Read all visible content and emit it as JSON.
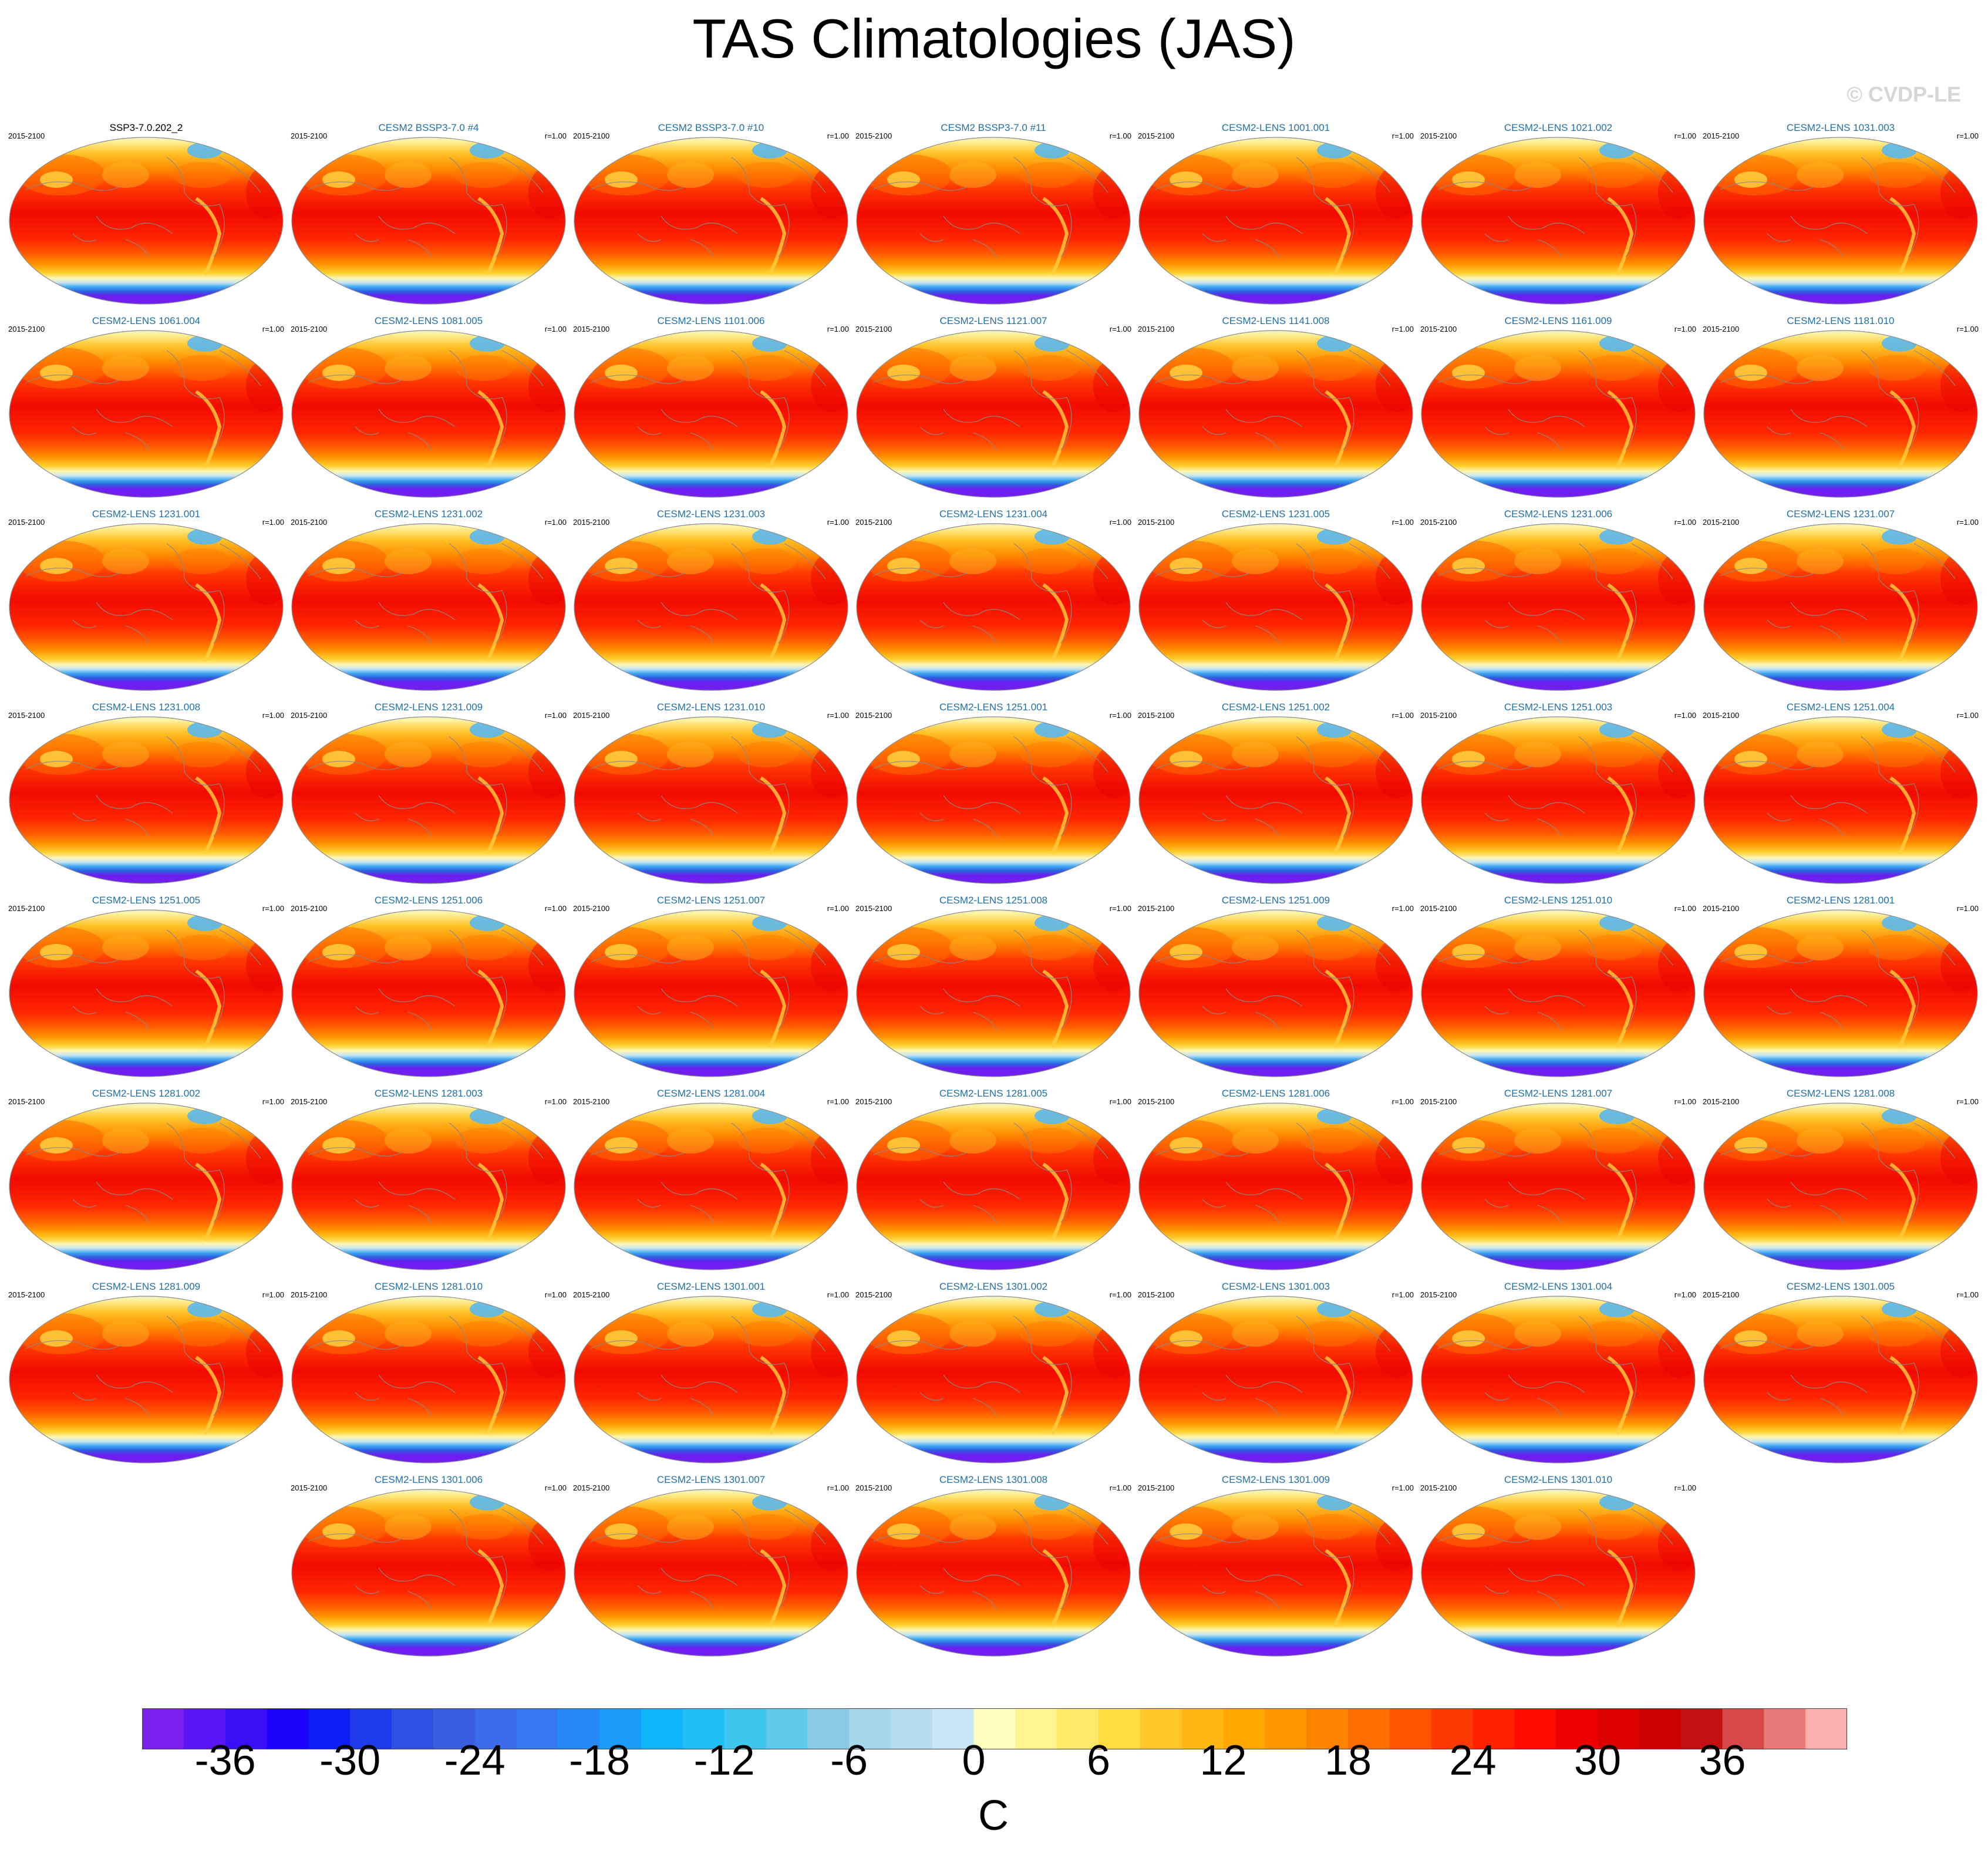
{
  "title": "TAS Climatologies (JAS)",
  "watermark": "© CVDP-LE",
  "panels": [
    {
      "title": "SSP3-7.0.202_2",
      "years": "2015-2100",
      "r": ""
    },
    {
      "title": "CESM2 BSSP3-7.0 #4",
      "years": "2015-2100",
      "r": "r=1.00"
    },
    {
      "title": "CESM2 BSSP3-7.0 #10",
      "years": "2015-2100",
      "r": "r=1.00"
    },
    {
      "title": "CESM2 BSSP3-7.0 #11",
      "years": "2015-2100",
      "r": "r=1.00"
    },
    {
      "title": "CESM2-LENS 1001.001",
      "years": "2015-2100",
      "r": "r=1.00"
    },
    {
      "title": "CESM2-LENS 1021.002",
      "years": "2015-2100",
      "r": "r=1.00"
    },
    {
      "title": "CESM2-LENS 1031.003",
      "years": "2015-2100",
      "r": "r=1.00"
    },
    {
      "title": "CESM2-LENS 1061.004",
      "years": "2015-2100",
      "r": "r=1.00"
    },
    {
      "title": "CESM2-LENS 1081.005",
      "years": "2015-2100",
      "r": "r=1.00"
    },
    {
      "title": "CESM2-LENS 1101.006",
      "years": "2015-2100",
      "r": "r=1.00"
    },
    {
      "title": "CESM2-LENS 1121.007",
      "years": "2015-2100",
      "r": "r=1.00"
    },
    {
      "title": "CESM2-LENS 1141.008",
      "years": "2015-2100",
      "r": "r=1.00"
    },
    {
      "title": "CESM2-LENS 1161.009",
      "years": "2015-2100",
      "r": "r=1.00"
    },
    {
      "title": "CESM2-LENS 1181.010",
      "years": "2015-2100",
      "r": "r=1.00"
    },
    {
      "title": "CESM2-LENS 1231.001",
      "years": "2015-2100",
      "r": "r=1.00"
    },
    {
      "title": "CESM2-LENS 1231.002",
      "years": "2015-2100",
      "r": "r=1.00"
    },
    {
      "title": "CESM2-LENS 1231.003",
      "years": "2015-2100",
      "r": "r=1.00"
    },
    {
      "title": "CESM2-LENS 1231.004",
      "years": "2015-2100",
      "r": "r=1.00"
    },
    {
      "title": "CESM2-LENS 1231.005",
      "years": "2015-2100",
      "r": "r=1.00"
    },
    {
      "title": "CESM2-LENS 1231.006",
      "years": "2015-2100",
      "r": "r=1.00"
    },
    {
      "title": "CESM2-LENS 1231.007",
      "years": "2015-2100",
      "r": "r=1.00"
    },
    {
      "title": "CESM2-LENS 1231.008",
      "years": "2015-2100",
      "r": "r=1.00"
    },
    {
      "title": "CESM2-LENS 1231.009",
      "years": "2015-2100",
      "r": "r=1.00"
    },
    {
      "title": "CESM2-LENS 1231.010",
      "years": "2015-2100",
      "r": "r=1.00"
    },
    {
      "title": "CESM2-LENS 1251.001",
      "years": "2015-2100",
      "r": "r=1.00"
    },
    {
      "title": "CESM2-LENS 1251.002",
      "years": "2015-2100",
      "r": "r=1.00"
    },
    {
      "title": "CESM2-LENS 1251.003",
      "years": "2015-2100",
      "r": "r=1.00"
    },
    {
      "title": "CESM2-LENS 1251.004",
      "years": "2015-2100",
      "r": "r=1.00"
    },
    {
      "title": "CESM2-LENS 1251.005",
      "years": "2015-2100",
      "r": "r=1.00"
    },
    {
      "title": "CESM2-LENS 1251.006",
      "years": "2015-2100",
      "r": "r=1.00"
    },
    {
      "title": "CESM2-LENS 1251.007",
      "years": "2015-2100",
      "r": "r=1.00"
    },
    {
      "title": "CESM2-LENS 1251.008",
      "years": "2015-2100",
      "r": "r=1.00"
    },
    {
      "title": "CESM2-LENS 1251.009",
      "years": "2015-2100",
      "r": "r=1.00"
    },
    {
      "title": "CESM2-LENS 1251.010",
      "years": "2015-2100",
      "r": "r=1.00"
    },
    {
      "title": "CESM2-LENS 1281.001",
      "years": "2015-2100",
      "r": "r=1.00"
    },
    {
      "title": "CESM2-LENS 1281.002",
      "years": "2015-2100",
      "r": "r=1.00"
    },
    {
      "title": "CESM2-LENS 1281.003",
      "years": "2015-2100",
      "r": "r=1.00"
    },
    {
      "title": "CESM2-LENS 1281.004",
      "years": "2015-2100",
      "r": "r=1.00"
    },
    {
      "title": "CESM2-LENS 1281.005",
      "years": "2015-2100",
      "r": "r=1.00"
    },
    {
      "title": "CESM2-LENS 1281.006",
      "years": "2015-2100",
      "r": "r=1.00"
    },
    {
      "title": "CESM2-LENS 1281.007",
      "years": "2015-2100",
      "r": "r=1.00"
    },
    {
      "title": "CESM2-LENS 1281.008",
      "years": "2015-2100",
      "r": "r=1.00"
    },
    {
      "title": "CESM2-LENS 1281.009",
      "years": "2015-2100",
      "r": "r=1.00"
    },
    {
      "title": "CESM2-LENS 1281.010",
      "years": "2015-2100",
      "r": "r=1.00"
    },
    {
      "title": "CESM2-LENS 1301.001",
      "years": "2015-2100",
      "r": "r=1.00"
    },
    {
      "title": "CESM2-LENS 1301.002",
      "years": "2015-2100",
      "r": "r=1.00"
    },
    {
      "title": "CESM2-LENS 1301.003",
      "years": "2015-2100",
      "r": "r=1.00"
    },
    {
      "title": "CESM2-LENS 1301.004",
      "years": "2015-2100",
      "r": "r=1.00"
    },
    {
      "title": "CESM2-LENS 1301.005",
      "years": "2015-2100",
      "r": "r=1.00"
    },
    {
      "title": "CESM2-LENS 1301.006",
      "years": "2015-2100",
      "r": "r=1.00"
    },
    {
      "title": "CESM2-LENS 1301.007",
      "years": "2015-2100",
      "r": "r=1.00"
    },
    {
      "title": "CESM2-LENS 1301.008",
      "years": "2015-2100",
      "r": "r=1.00"
    },
    {
      "title": "CESM2-LENS 1301.009",
      "years": "2015-2100",
      "r": "r=1.00"
    },
    {
      "title": "CESM2-LENS 1301.010",
      "years": "2015-2100",
      "r": "r=1.00"
    }
  ],
  "colorbar": {
    "units": "C",
    "tick_labels": [
      "-36",
      "-30",
      "-24",
      "-18",
      "-12",
      "-6",
      "0",
      "6",
      "12",
      "18",
      "24",
      "30",
      "36"
    ],
    "colors": [
      "#7a1ff0",
      "#5a16f2",
      "#3a0ff5",
      "#1a05fa",
      "#0d1ef5",
      "#1f3ae8",
      "#2f50e0",
      "#3a5ee0",
      "#3d6ae8",
      "#3578f0",
      "#2488f5",
      "#1a9cf8",
      "#10b4fa",
      "#20c0f5",
      "#3dc6ee",
      "#5fcaec",
      "#8bcbe6",
      "#a6d6ec",
      "#b7dcef",
      "#c8e6f4",
      "#fffcc0",
      "#fff490",
      "#ffe868",
      "#ffdc40",
      "#ffc828",
      "#ffb812",
      "#ffa800",
      "#ff9600",
      "#ff8200",
      "#ff6e00",
      "#ff5400",
      "#ff3a00",
      "#ff2000",
      "#ff0a00",
      "#ee0000",
      "#dc0000",
      "#cc0000",
      "#c41010",
      "#d84848",
      "#ea7a7a",
      "#fbb0b0"
    ]
  }
}
